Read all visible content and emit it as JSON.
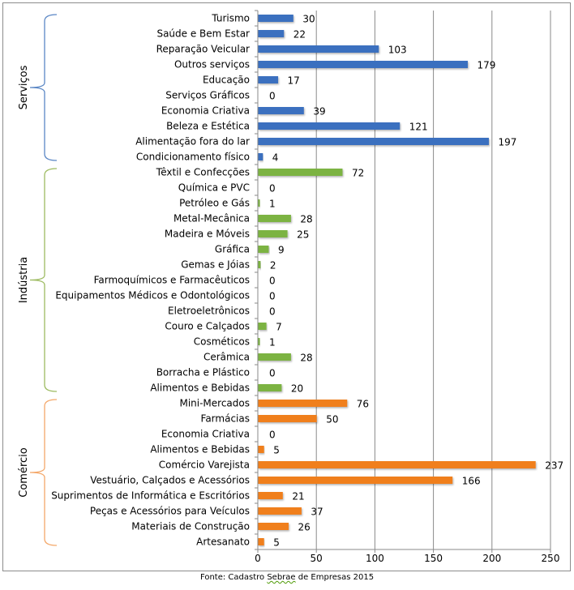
{
  "chart_data": {
    "type": "bar",
    "orientation": "horizontal",
    "title": "",
    "xlabel": "",
    "ylabel": "",
    "xlim": [
      0,
      250
    ],
    "x_ticks": [
      0,
      50,
      100,
      150,
      200,
      250
    ],
    "grid": "vertical",
    "groups": [
      {
        "name": "Serviços",
        "color": "#3a6fbf",
        "bracket_color": "#5b87c5",
        "categories": [
          "Turismo",
          "Saúde e Bem Estar",
          "Reparação Veicular",
          "Outros serviços",
          "Educação",
          "Serviços Gráficos",
          "Economia Criativa",
          "Beleza e Estética",
          "Alimentação fora do lar",
          "Condicionamento físico"
        ],
        "values": [
          30,
          22,
          103,
          179,
          17,
          0,
          39,
          121,
          197,
          4
        ]
      },
      {
        "name": "Indústria",
        "color": "#7cb342",
        "bracket_color": "#9dbb61",
        "categories": [
          "Têxtil e Confecções",
          "Química e PVC",
          "Petróleo e Gás",
          "Metal-Mecânica",
          "Madeira e Móveis",
          "Gráfica",
          "Gemas e Jóias",
          "Farmoquímicos e Farmacêuticos",
          "Equipamentos Médicos e Odontológicos",
          "Eletroeletrônicos",
          "Couro e Calçados",
          "Cosméticos",
          "Cerâmica",
          "Borracha e Plástico",
          "Alimentos e Bebidas"
        ],
        "values": [
          72,
          0,
          1,
          28,
          25,
          9,
          2,
          0,
          0,
          0,
          7,
          1,
          28,
          0,
          20
        ]
      },
      {
        "name": "Comércio",
        "color": "#f07f1e",
        "bracket_color": "#f4a86a",
        "categories": [
          "Mini-Mercados",
          "Farmácias",
          "Economia Criativa",
          "Alimentos e Bebidas",
          "Comércio Varejista",
          "Vestuário, Calçados e Acessórios",
          "Suprimentos de Informática e Escritórios",
          "Peças e Acessórios para Veículos",
          "Materiais de Construção",
          "Artesanato"
        ],
        "values": [
          76,
          50,
          0,
          5,
          237,
          166,
          21,
          37,
          26,
          5
        ]
      }
    ],
    "source": {
      "prefix": "Fonte: Cadastro ",
      "highlight": "Sebrae",
      "suffix": " de Empresas 2015"
    }
  }
}
